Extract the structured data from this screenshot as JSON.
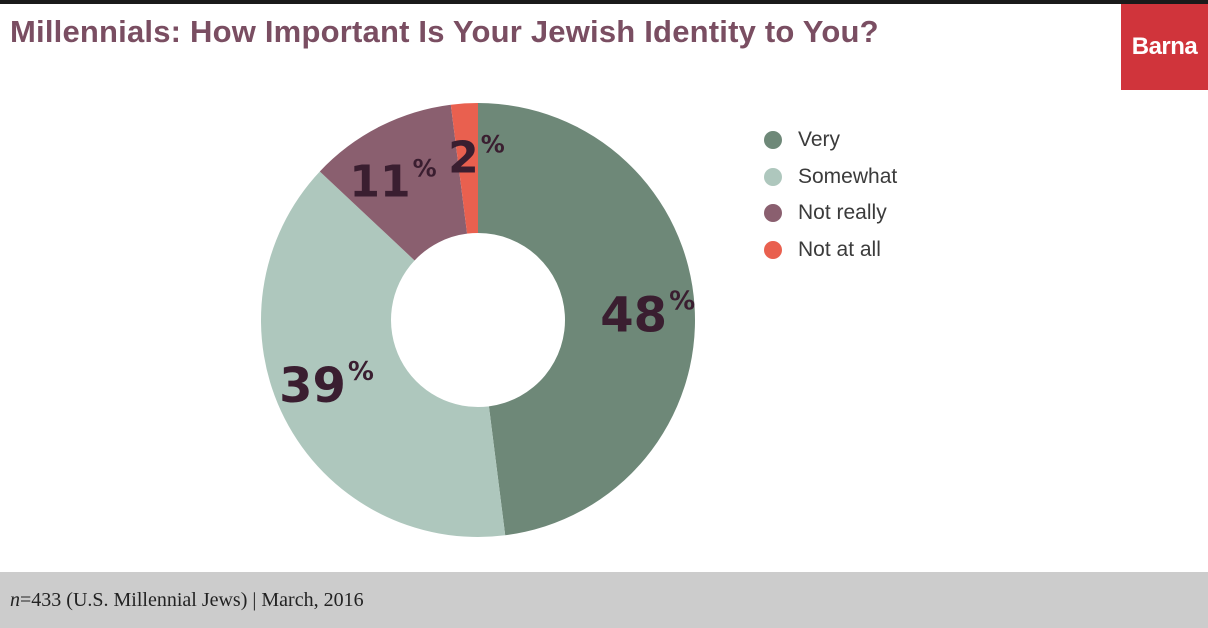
{
  "header": {
    "title": "Millennials: How Important Is Your Jewish Identity to You?",
    "logo_text": "Barna"
  },
  "chart_data": {
    "type": "pie",
    "variant": "donut",
    "title": "Millennials: How Important Is Your Jewish Identity to You?",
    "categories": [
      "Very",
      "Somewhat",
      "Not really",
      "Not at all"
    ],
    "values": [
      48,
      39,
      11,
      2
    ],
    "value_labels": [
      "48",
      "39",
      "11",
      "2"
    ],
    "unit_suffix": "%",
    "colors": [
      "#6e8878",
      "#aec7bd",
      "#8a5f6f",
      "#e9604f"
    ],
    "legend_position": "top-right"
  },
  "footer": {
    "n_label": "n",
    "note": "=433 (U.S. Millennial Jews) | March, 2016"
  }
}
